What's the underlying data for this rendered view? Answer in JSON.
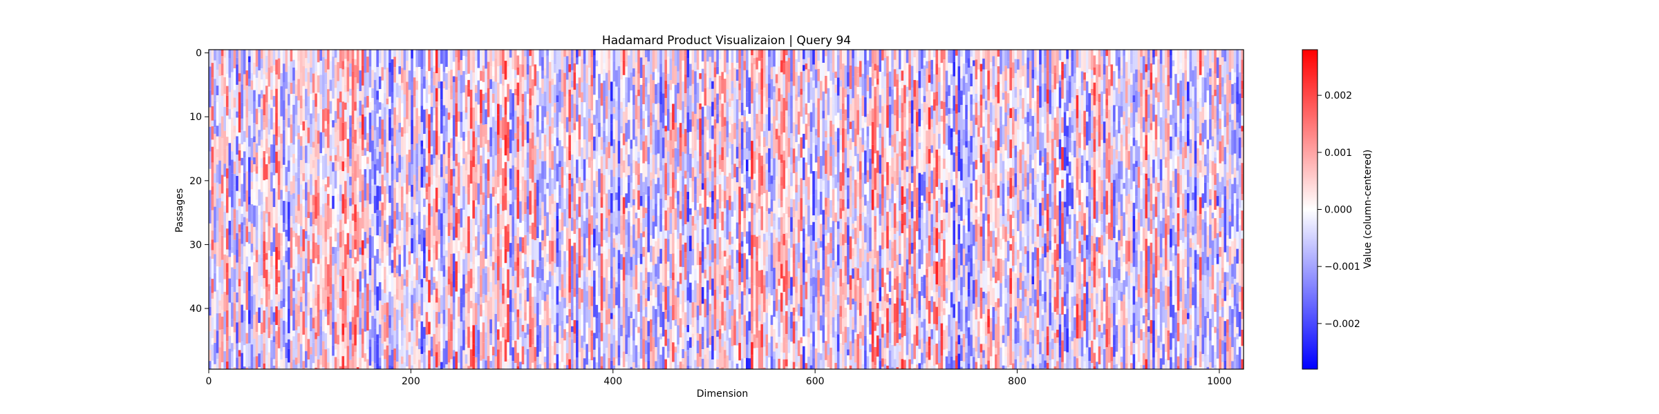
{
  "chart_data": {
    "type": "heatmap",
    "title": "Hadamard Product Visualizaion | Query 94",
    "xlabel": "Dimension",
    "ylabel": "Passages",
    "xlim": [
      0,
      1024
    ],
    "ylim": [
      49.5,
      -0.5
    ],
    "x_ticks": [
      0,
      200,
      400,
      600,
      800,
      1000
    ],
    "y_ticks": [
      0,
      10,
      20,
      30,
      40
    ],
    "rows": 50,
    "columns": 1024,
    "colormap": "bwr",
    "colorbar": {
      "label": "Value (column-centered)",
      "range": [
        -0.0028,
        0.0028
      ],
      "ticks": [
        "0.002",
        "0.001",
        "0.000",
        "−0.001",
        "−0.002"
      ],
      "tick_values": [
        0.002,
        0.001,
        0.0,
        -0.001,
        -0.002
      ]
    },
    "grid": false,
    "colors": {
      "negative": "#0000ff",
      "zero": "#ffffff",
      "positive": "#ff0000"
    }
  }
}
